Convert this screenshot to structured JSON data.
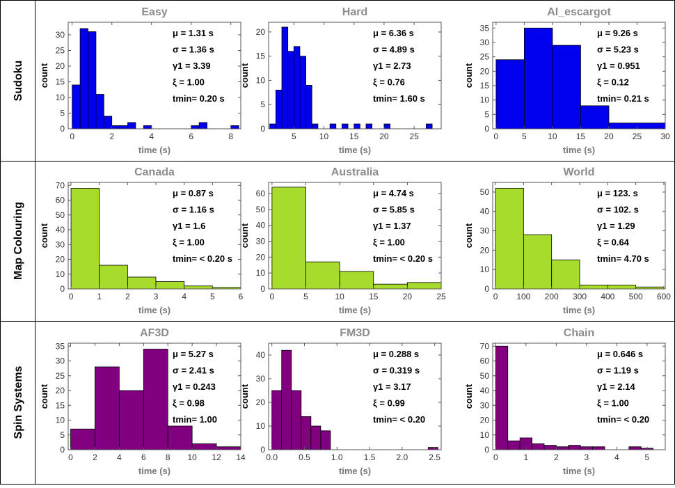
{
  "rows": [
    {
      "label": "Sudoku",
      "charts": [
        0,
        1,
        2
      ]
    },
    {
      "label": "Map Colouring",
      "charts": [
        3,
        4,
        5
      ]
    },
    {
      "label": "Spin Systems",
      "charts": [
        6,
        7,
        8
      ]
    }
  ],
  "chart_data": [
    {
      "type": "bar",
      "title": "Easy",
      "xlabel": "time (s)",
      "ylabel": "count",
      "color": "#0000ee",
      "xlim": [
        -0.2,
        8.5
      ],
      "ylim": [
        0,
        34
      ],
      "xticks": [
        "0",
        "2",
        "4",
        "6",
        "8"
      ],
      "xtick_values": [
        0,
        2,
        4,
        6,
        8
      ],
      "yticks": [
        "0",
        "5",
        "10",
        "15",
        "20",
        "25",
        "30"
      ],
      "ytick_values": [
        0,
        5,
        10,
        15,
        20,
        25,
        30
      ],
      "bin_edges": [
        0,
        0.4,
        0.8,
        1.2,
        1.6,
        2.0,
        2.4,
        2.8,
        3.2,
        3.6,
        4.0,
        4.4,
        4.8,
        5.2,
        5.6,
        6.0,
        6.4,
        6.8,
        7.2,
        7.6,
        8.0,
        8.4
      ],
      "counts": [
        14,
        32,
        31,
        11,
        4,
        1,
        1,
        2,
        0,
        1,
        0,
        0,
        0,
        0,
        0,
        1,
        2,
        0,
        0,
        0,
        1
      ],
      "stats": [
        "μ = 1.31 s",
        "σ = 1.36 s",
        "γ1 = 3.39",
        "ξ = 1.00",
        "tmin= 0.20 s"
      ]
    },
    {
      "type": "bar",
      "title": "Hard",
      "xlabel": "time (s)",
      "ylabel": "count",
      "color": "#0000ee",
      "xlim": [
        0.8,
        29.5
      ],
      "ylim": [
        0,
        22
      ],
      "xticks": [
        "5",
        "10",
        "15",
        "20",
        "25"
      ],
      "xtick_values": [
        5,
        10,
        15,
        20,
        25
      ],
      "yticks": [
        "0",
        "5",
        "10",
        "15",
        "20"
      ],
      "ytick_values": [
        0,
        5,
        10,
        15,
        20
      ],
      "bin_edges": [
        1,
        2,
        3,
        4,
        5,
        6,
        7,
        8,
        9,
        10,
        11,
        12,
        13,
        14,
        15,
        16,
        17,
        18,
        19,
        20,
        21,
        22,
        23,
        24,
        25,
        26,
        27,
        28,
        29
      ],
      "counts": [
        1,
        8,
        21,
        16,
        17,
        15,
        9,
        1,
        0,
        0,
        1,
        0,
        1,
        0,
        1,
        0,
        1,
        0,
        0,
        1,
        0,
        0,
        0,
        0,
        0,
        0,
        1,
        0
      ],
      "stats": [
        "μ = 6.36 s",
        "σ = 4.89 s",
        "γ1 = 2.73",
        "ξ = 0.76",
        "tmin= 1.60 s"
      ]
    },
    {
      "type": "bar",
      "title": "AI_escargot",
      "xlabel": "time (s)",
      "ylabel": "count",
      "color": "#0000ee",
      "xlim": [
        -0.6,
        30
      ],
      "ylim": [
        0,
        37
      ],
      "xticks": [
        "0",
        "5",
        "10",
        "15",
        "20",
        "25",
        "30"
      ],
      "xtick_values": [
        0,
        5,
        10,
        15,
        20,
        25,
        30
      ],
      "yticks": [
        "0",
        "5",
        "10",
        "15",
        "20",
        "25",
        "30",
        "35"
      ],
      "ytick_values": [
        0,
        5,
        10,
        15,
        20,
        25,
        30,
        35
      ],
      "bin_edges": [
        0,
        5,
        10,
        15,
        20,
        30
      ],
      "counts": [
        24,
        35,
        29,
        8,
        2
      ],
      "stats": [
        "μ = 9.26 s",
        "σ = 5.23 s",
        "γ1 = 0.951",
        "ξ = 0.12",
        "tmin= 0.21 s"
      ]
    },
    {
      "type": "bar",
      "title": "Canada",
      "xlabel": "time (s)",
      "ylabel": "count",
      "color": "#a8dc2c",
      "xlim": [
        -0.1,
        6
      ],
      "ylim": [
        0,
        72
      ],
      "xticks": [
        "0",
        "1",
        "2",
        "3",
        "4",
        "5",
        "6"
      ],
      "xtick_values": [
        0,
        1,
        2,
        3,
        4,
        5,
        6
      ],
      "yticks": [
        "0",
        "10",
        "20",
        "30",
        "40",
        "50",
        "60",
        "70"
      ],
      "ytick_values": [
        0,
        10,
        20,
        30,
        40,
        50,
        60,
        70
      ],
      "bin_edges": [
        0,
        1,
        2,
        3,
        4,
        5,
        6
      ],
      "counts": [
        68,
        16,
        8,
        5,
        2,
        1
      ],
      "stats": [
        "μ = 0.87 s",
        "σ = 1.16 s",
        "γ1 = 1.6",
        "ξ = 1.00",
        "tmin= < 0.20 s"
      ]
    },
    {
      "type": "bar",
      "title": "Australia",
      "xlabel": "time (s)",
      "ylabel": "count",
      "color": "#a8dc2c",
      "xlim": [
        -0.5,
        25
      ],
      "ylim": [
        0,
        67
      ],
      "xticks": [
        "0",
        "5",
        "10",
        "15",
        "20",
        "25"
      ],
      "xtick_values": [
        0,
        5,
        10,
        15,
        20,
        25
      ],
      "yticks": [
        "0",
        "10",
        "20",
        "30",
        "40",
        "50",
        "60"
      ],
      "ytick_values": [
        0,
        10,
        20,
        30,
        40,
        50,
        60
      ],
      "bin_edges": [
        0,
        5,
        10,
        15,
        20,
        25
      ],
      "counts": [
        64,
        17,
        11,
        3,
        4
      ],
      "stats": [
        "μ = 4.74 s",
        "σ = 5.85 s",
        "γ1 = 1.37",
        "ξ = 1.00",
        "tmin= < 0.20 s"
      ]
    },
    {
      "type": "bar",
      "title": "World",
      "xlabel": "time (s)",
      "ylabel": "count",
      "color": "#a8dc2c",
      "xlim": [
        -10,
        605
      ],
      "ylim": [
        0,
        55
      ],
      "xticks": [
        "0",
        "100",
        "200",
        "300",
        "400",
        "500",
        "600"
      ],
      "xtick_values": [
        0,
        100,
        200,
        300,
        400,
        500,
        600
      ],
      "yticks": [
        "0",
        "10",
        "20",
        "30",
        "40",
        "50"
      ],
      "ytick_values": [
        0,
        10,
        20,
        30,
        40,
        50
      ],
      "bin_edges": [
        0,
        100,
        200,
        300,
        400,
        500,
        600
      ],
      "counts": [
        52,
        28,
        15,
        2,
        2,
        1
      ],
      "stats": [
        "μ = 123. s",
        "σ = 102. s",
        "γ1 = 1.29",
        "ξ = 0.64",
        "tmin= 4.70 s"
      ]
    },
    {
      "type": "bar",
      "title": "AF3D",
      "xlabel": "time (s)",
      "ylabel": "count",
      "color": "#800080",
      "xlim": [
        -0.2,
        14
      ],
      "ylim": [
        0,
        36
      ],
      "xticks": [
        "0",
        "2",
        "4",
        "6",
        "8",
        "10",
        "12",
        "14"
      ],
      "xtick_values": [
        0,
        2,
        4,
        6,
        8,
        10,
        12,
        14
      ],
      "yticks": [
        "0",
        "5",
        "10",
        "15",
        "20",
        "25",
        "30",
        "35"
      ],
      "ytick_values": [
        0,
        5,
        10,
        15,
        20,
        25,
        30,
        35
      ],
      "bin_edges": [
        0,
        2,
        4,
        6,
        8,
        10,
        12,
        14
      ],
      "counts": [
        7,
        28,
        20,
        34,
        8,
        2,
        1
      ],
      "stats": [
        "μ = 5.27 s",
        "σ = 2.41 s",
        "γ1 = 0.243",
        "ξ = 0.98",
        "tmin= 1.00"
      ]
    },
    {
      "type": "bar",
      "title": "FM3D",
      "xlabel": "time (s)",
      "ylabel": "count",
      "color": "#800080",
      "xlim": [
        -0.05,
        2.6
      ],
      "ylim": [
        0,
        45
      ],
      "xticks": [
        "0.0",
        "0.5",
        "1.0",
        "1.5",
        "2.0",
        "2.5"
      ],
      "xtick_values": [
        0,
        0.5,
        1.0,
        1.5,
        2.0,
        2.5
      ],
      "yticks": [
        "0",
        "10",
        "20",
        "30",
        "40"
      ],
      "ytick_values": [
        0,
        10,
        20,
        30,
        40
      ],
      "bin_edges": [
        0,
        0.15,
        0.3,
        0.45,
        0.6,
        0.75,
        0.9,
        1.05,
        1.2,
        1.35,
        1.5,
        1.65,
        1.8,
        1.95,
        2.1,
        2.25,
        2.4,
        2.55
      ],
      "counts": [
        25,
        42,
        25,
        14,
        10,
        8,
        0,
        0,
        0,
        0,
        0,
        0,
        0,
        0,
        0,
        0,
        1
      ],
      "stats": [
        "μ = 0.288 s",
        "σ = 0.319 s",
        "γ1 = 3.17",
        "ξ = 0.99",
        "tmin= < 0.20"
      ]
    },
    {
      "type": "bar",
      "title": "Chain",
      "xlabel": "time (s)",
      "ylabel": "count",
      "color": "#800080",
      "xlim": [
        -0.1,
        5.6
      ],
      "ylim": [
        0,
        72
      ],
      "xticks": [
        "0",
        "1",
        "2",
        "3",
        "4",
        "5"
      ],
      "xtick_values": [
        0,
        1,
        2,
        3,
        4,
        5
      ],
      "yticks": [
        "0",
        "10",
        "20",
        "30",
        "40",
        "50",
        "60",
        "70"
      ],
      "ytick_values": [
        0,
        10,
        20,
        30,
        40,
        50,
        60,
        70
      ],
      "bin_edges": [
        0,
        0.4,
        0.8,
        1.2,
        1.6,
        2.0,
        2.4,
        2.8,
        3.2,
        3.6,
        4.0,
        4.4,
        4.8,
        5.2,
        5.6
      ],
      "counts": [
        70,
        6,
        8,
        4,
        3,
        2,
        3,
        2,
        2,
        0,
        0,
        2,
        1,
        0
      ],
      "stats": [
        "μ = 0.646 s",
        "σ = 1.19 s",
        "γ1 = 2.14",
        "ξ = 1.00",
        "tmin= < 0.20"
      ]
    }
  ]
}
